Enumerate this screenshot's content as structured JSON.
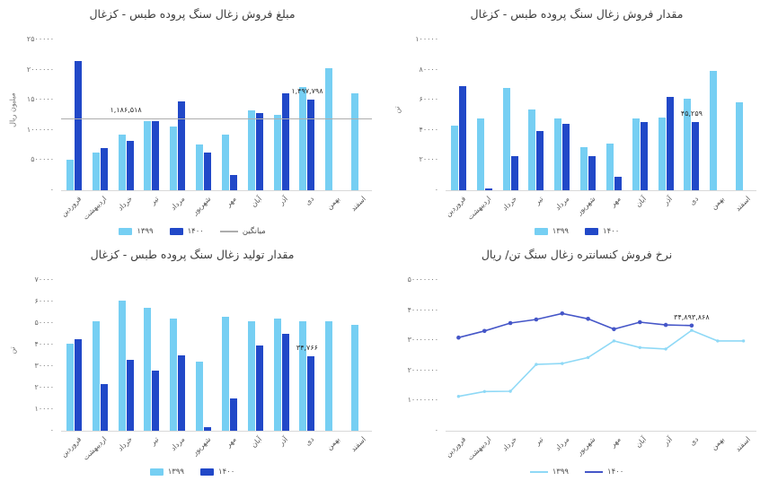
{
  "page": {
    "background": "#ffffff"
  },
  "colors": {
    "series_1399_bar": "#76CFF3",
    "series_1400_bar": "#2148C8",
    "series_1399_line": "#8FD9F6",
    "series_1400_line": "#4556C8",
    "average_line": "#ADADAD"
  },
  "chart_data": [
    {
      "id": "sales-amount",
      "type": "bar",
      "title": "مبلغ فروش زغال سنگ پروده طبس - کزغال",
      "xlabel": "",
      "ylabel": "میلیون ریال",
      "ymax": 2500000,
      "ylim": [
        0,
        2500000
      ],
      "grid": false,
      "legend_position": "bottom",
      "yticks": [
        {
          "v": 2500000,
          "label": "۲۵۰۰۰۰۰"
        },
        {
          "v": 2000000,
          "label": "۲۰۰۰۰۰۰"
        },
        {
          "v": 1500000,
          "label": "۱۵۰۰۰۰۰"
        },
        {
          "v": 1000000,
          "label": "۱۰۰۰۰۰۰"
        },
        {
          "v": 500000,
          "label": "۵۰۰۰۰۰"
        },
        {
          "v": 0,
          "label": "۰"
        }
      ],
      "categories": [
        "فروردین",
        "اردیبهشت",
        "خرداد",
        "تیر",
        "مرداد",
        "شهریور",
        "مهر",
        "آبان",
        "آذر",
        "دی",
        "بهمن",
        "اسفند"
      ],
      "series": [
        {
          "name": "۱۳۹۹",
          "color": "#76CFF3",
          "values": [
            500000,
            620000,
            920000,
            1140000,
            1050000,
            760000,
            920000,
            1330000,
            1250000,
            1710000,
            2030000,
            1600000
          ]
        },
        {
          "name": "۱۴۰۰",
          "color": "#2148C8",
          "values": [
            2140000,
            700000,
            820000,
            1150000,
            1480000,
            620000,
            260000,
            1280000,
            1610000,
            1497798,
            null,
            null
          ]
        }
      ],
      "average": {
        "label": "میانگین",
        "value": 1186518,
        "color": "#ADADAD"
      },
      "annotations": [
        {
          "text": "۱,۱۸۶,۵۱۸",
          "series": "avg",
          "month": 2
        },
        {
          "text": "۱,۴۹۷,۷۹۸",
          "series": 1,
          "month": 9
        }
      ]
    },
    {
      "id": "sales-quantity",
      "type": "bar",
      "title": "مقدار فروش زغال سنگ پروده طبس - کزغال",
      "xlabel": "",
      "ylabel": "تن",
      "ymax": 100000,
      "ylim": [
        0,
        100000
      ],
      "grid": false,
      "legend_position": "bottom",
      "yticks": [
        {
          "v": 100000,
          "label": "۱۰۰۰۰۰"
        },
        {
          "v": 80000,
          "label": "۸۰۰۰۰"
        },
        {
          "v": 60000,
          "label": "۶۰۰۰۰"
        },
        {
          "v": 40000,
          "label": "۴۰۰۰۰"
        },
        {
          "v": 20000,
          "label": "۲۰۰۰۰"
        },
        {
          "v": 0,
          "label": "۰"
        }
      ],
      "categories": [
        "فروردین",
        "اردیبهشت",
        "خرداد",
        "تیر",
        "مرداد",
        "شهریور",
        "مهر",
        "آبان",
        "آذر",
        "دی",
        "بهمن",
        "اسفند"
      ],
      "series": [
        {
          "name": "۱۳۹۹",
          "color": "#76CFF3",
          "values": [
            43000,
            47500,
            68000,
            53500,
            47500,
            28500,
            31000,
            47500,
            48000,
            61000,
            79000,
            58500
          ]
        },
        {
          "name": "۱۴۰۰",
          "color": "#2148C8",
          "values": [
            69000,
            1200,
            22500,
            39500,
            44000,
            22500,
            9000,
            45000,
            62000,
            45259,
            null,
            null
          ]
        }
      ],
      "annotations": [
        {
          "text": "۴۵,۲۵۹",
          "series": 1,
          "month": 9
        }
      ]
    },
    {
      "id": "production-quantity",
      "type": "bar",
      "title": "مقدار تولید زغال سنگ پروده طبس - کزغال",
      "xlabel": "",
      "ylabel": "تن",
      "ymax": 70000,
      "ylim": [
        0,
        70000
      ],
      "grid": false,
      "legend_position": "bottom",
      "yticks": [
        {
          "v": 70000,
          "label": "۷۰۰۰۰"
        },
        {
          "v": 60000,
          "label": "۶۰۰۰۰"
        },
        {
          "v": 50000,
          "label": "۵۰۰۰۰"
        },
        {
          "v": 40000,
          "label": "۴۰۰۰۰"
        },
        {
          "v": 30000,
          "label": "۳۰۰۰۰"
        },
        {
          "v": 20000,
          "label": "۲۰۰۰۰"
        },
        {
          "v": 10000,
          "label": "۱۰۰۰۰"
        },
        {
          "v": 0,
          "label": "۰"
        }
      ],
      "categories": [
        "فروردین",
        "اردیبهشت",
        "خرداد",
        "تیر",
        "مرداد",
        "شهریور",
        "مهر",
        "آبان",
        "آذر",
        "دی",
        "بهمن",
        "اسفند"
      ],
      "series": [
        {
          "name": "۱۳۹۹",
          "color": "#76CFF3",
          "values": [
            40500,
            51000,
            60500,
            57000,
            52000,
            32000,
            53000,
            51000,
            52000,
            51000,
            51000,
            49000
          ]
        },
        {
          "name": "۱۴۰۰",
          "color": "#2148C8",
          "values": [
            42500,
            21500,
            33000,
            28000,
            35000,
            1500,
            15000,
            39500,
            45000,
            34766,
            null,
            null
          ]
        }
      ],
      "annotations": [
        {
          "text": "۳۴,۷۶۶",
          "series": 1,
          "month": 9
        }
      ]
    },
    {
      "id": "concentrate-sale-rate",
      "type": "line",
      "title": "نرخ فروش کنسانتره زغال سنگ تن/ ریال",
      "xlabel": "",
      "ylabel": "",
      "ymax": 50000000,
      "ylim": [
        0,
        50000000
      ],
      "grid": false,
      "legend_position": "bottom",
      "yticks": [
        {
          "v": 50000000,
          "label": "۵۰۰۰۰۰۰۰"
        },
        {
          "v": 40000000,
          "label": "۴۰۰۰۰۰۰۰"
        },
        {
          "v": 30000000,
          "label": "۳۰۰۰۰۰۰۰"
        },
        {
          "v": 20000000,
          "label": "۲۰۰۰۰۰۰۰"
        },
        {
          "v": 10000000,
          "label": "۱۰۰۰۰۰۰۰"
        },
        {
          "v": 0,
          "label": "۰"
        }
      ],
      "categories": [
        "فروردین",
        "اردیبهشت",
        "خرداد",
        "تیر",
        "مرداد",
        "شهریور",
        "مهر",
        "آبان",
        "آذر",
        "دی",
        "بهمن",
        "اسفند"
      ],
      "series": [
        {
          "name": "۱۳۹۹",
          "color": "#8FD9F6",
          "values": [
            11400000,
            13000000,
            13100000,
            22000000,
            22300000,
            24300000,
            29800000,
            27600000,
            27100000,
            33300000,
            29800000,
            29800000
          ]
        },
        {
          "name": "۱۴۰۰",
          "color": "#4556C8",
          "values": [
            30900000,
            33100000,
            35700000,
            36900000,
            38900000,
            37100000,
            33700000,
            36000000,
            35100000,
            34893868,
            null,
            null
          ]
        }
      ],
      "annotations": [
        {
          "text": "۳۴,۸۹۳,۸۶۸",
          "series": 1,
          "month": 9
        }
      ]
    }
  ]
}
